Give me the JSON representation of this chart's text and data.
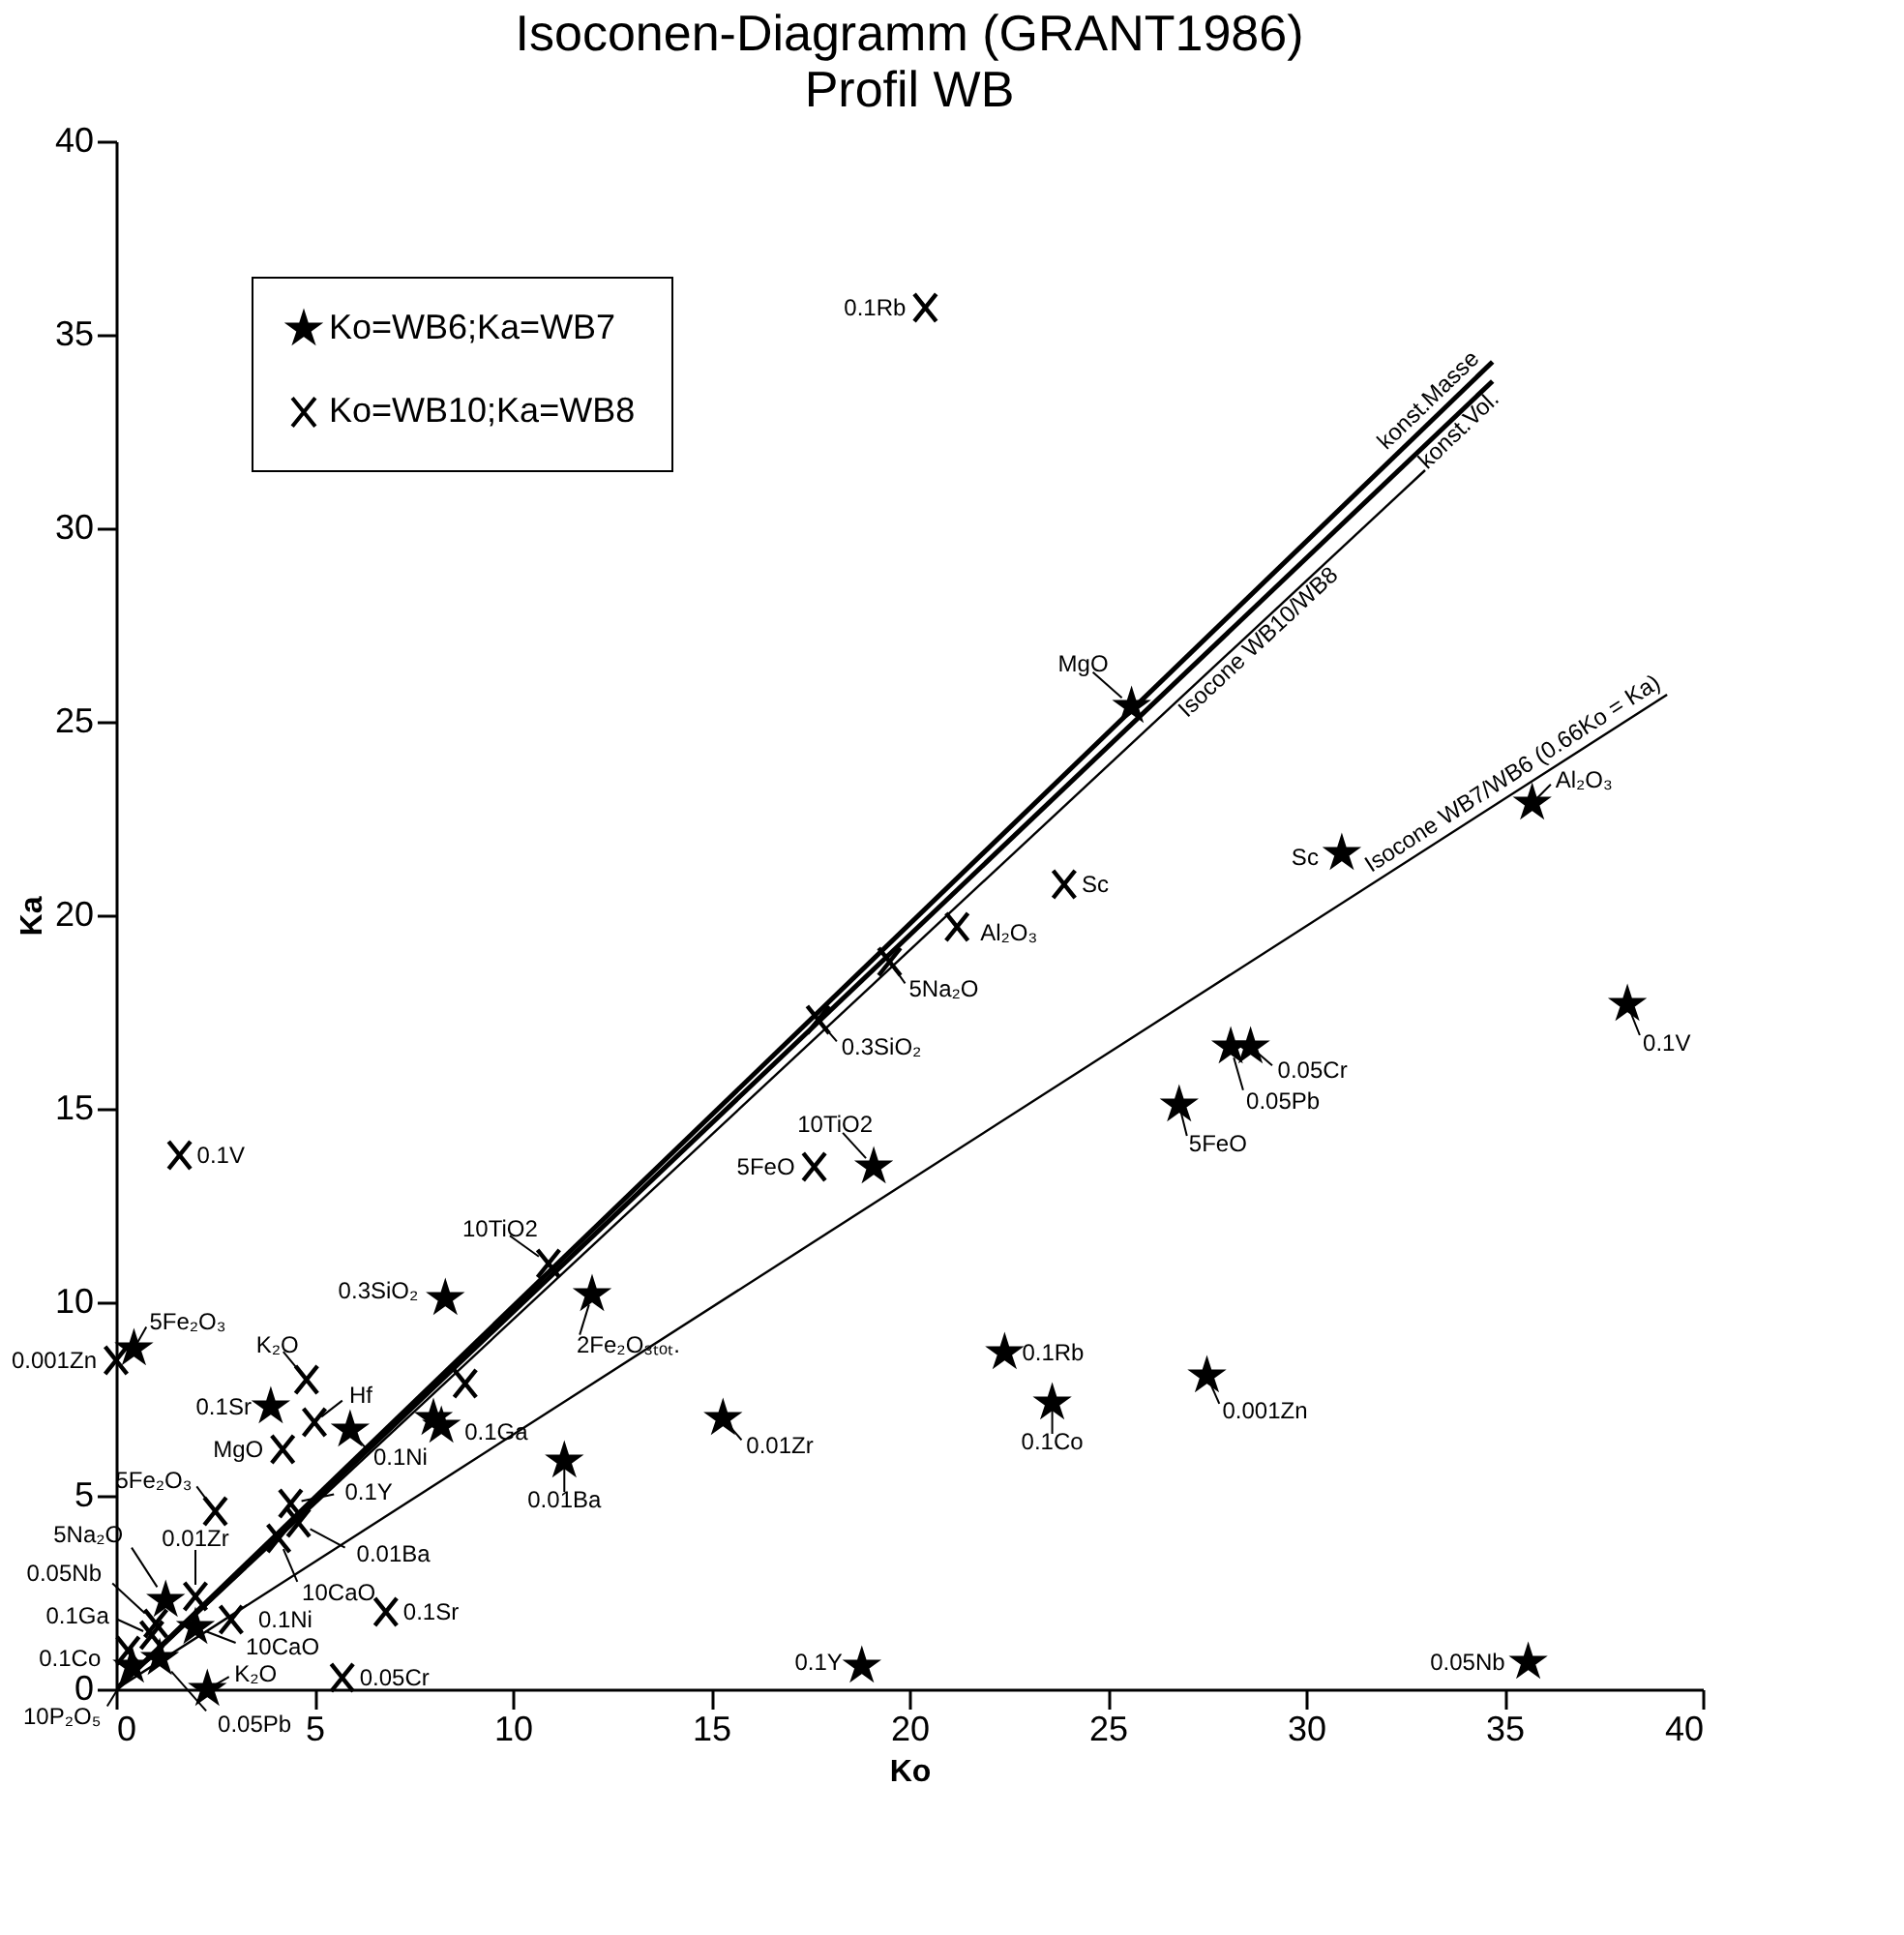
{
  "chart_data": {
    "type": "scatter",
    "title": "Isoconen-Diagramm (GRANT1986)",
    "subtitle": "Profil WB",
    "xlabel": "Ko",
    "ylabel": "Ka",
    "xlim": [
      0,
      40
    ],
    "ylim": [
      0,
      40
    ],
    "xticks": [
      0,
      5,
      10,
      15,
      20,
      25,
      30,
      35,
      40
    ],
    "yticks": [
      0,
      5,
      10,
      15,
      20,
      25,
      30,
      35,
      40
    ],
    "grid": false,
    "legend": "top left",
    "series": [
      {
        "name": "Ko=WB6;Ka=WB7",
        "marker": "star",
        "color": "#000000",
        "x": [
          25.6,
          35.7,
          30.9,
          38.1,
          28.6,
          28.1,
          26.8,
          19.1,
          22.4,
          23.6,
          27.5,
          15.3,
          18.8,
          35.6,
          11.3,
          8.3,
          12.0,
          0.45,
          3.9,
          5.9,
          8.0,
          8.2,
          1.25,
          2.3,
          2.0,
          0.4,
          1.1
        ],
        "values": [
          25.4,
          22.9,
          21.6,
          17.7,
          16.6,
          16.6,
          15.1,
          13.5,
          8.7,
          7.4,
          8.1,
          7.0,
          0.6,
          0.7,
          5.9,
          10.1,
          10.2,
          8.8,
          7.3,
          6.7,
          7.0,
          6.8,
          2.3,
          0.0,
          1.6,
          0.6,
          0.8
        ]
      },
      {
        "name": "Ko=WB10;Ka=WB8",
        "marker": "cross",
        "color": "#000000",
        "x": [
          20.4,
          1.6,
          23.9,
          21.2,
          19.5,
          17.7,
          17.6,
          10.9,
          0.0,
          4.8,
          5.0,
          4.2,
          2.5,
          4.4,
          4.6,
          4.1,
          8.8,
          2.9,
          6.8,
          5.7,
          0.3,
          0.9,
          1.0,
          2.0
        ],
        "values": [
          35.7,
          13.8,
          20.8,
          19.7,
          18.8,
          17.3,
          13.5,
          11.0,
          8.5,
          8.0,
          6.9,
          6.2,
          4.6,
          4.8,
          4.3,
          3.9,
          7.9,
          1.8,
          2.0,
          0.3,
          1.0,
          1.4,
          1.7,
          2.4
        ]
      },
      {
        "name": "konst.Masse",
        "type": "line",
        "color": "#000000",
        "x": [
          0,
          34.7
        ],
        "values": [
          0,
          34.3
        ]
      },
      {
        "name": "konst.Vol.",
        "type": "line",
        "color": "#000000",
        "x": [
          0,
          34.7
        ],
        "values": [
          0,
          33.8
        ]
      },
      {
        "name": "Isocone WB10/WB8",
        "type": "line",
        "color": "#000000",
        "x": [
          0,
          33.0
        ],
        "values": [
          0,
          31.5
        ]
      },
      {
        "name": "Isocone WB7/WB6 (0.66Ko = Ka)",
        "type": "line",
        "color": "#000000",
        "x": [
          0,
          39.1
        ],
        "values": [
          0,
          25.7
        ]
      }
    ],
    "annotations": [
      {
        "text": "MgO",
        "x": 25.6,
        "y": 25.4
      },
      {
        "text": "Al₂O₃",
        "x": 35.7,
        "y": 22.9
      },
      {
        "text": "Sc",
        "x": 30.9,
        "y": 21.6
      },
      {
        "text": "0.1V",
        "x": 38.1,
        "y": 17.7
      },
      {
        "text": "0.05Cr",
        "x": 28.6,
        "y": 16.6
      },
      {
        "text": "0.05Pb",
        "x": 28.1,
        "y": 16.6
      },
      {
        "text": "5FeO",
        "x": 26.8,
        "y": 15.1
      },
      {
        "text": "10TiO2",
        "x": 19.1,
        "y": 13.5
      },
      {
        "text": "0.1Rb",
        "x": 22.4,
        "y": 8.7
      },
      {
        "text": "0.1Co",
        "x": 23.6,
        "y": 7.4
      },
      {
        "text": "0.001Zn",
        "x": 27.5,
        "y": 8.1
      },
      {
        "text": "0.01Zr",
        "x": 15.3,
        "y": 7.0
      },
      {
        "text": "0.1Y",
        "x": 18.8,
        "y": 0.6
      },
      {
        "text": "0.05Nb",
        "x": 35.6,
        "y": 0.7
      },
      {
        "text": "0.01Ba",
        "x": 11.3,
        "y": 5.9
      },
      {
        "text": "0.3SiO₂",
        "x": 8.3,
        "y": 10.1
      },
      {
        "text": "2Fe₂O₃ₜₒₜ.",
        "x": 12.0,
        "y": 10.2
      },
      {
        "text": "5Fe₂O₃",
        "x": 0.45,
        "y": 8.8
      },
      {
        "text": "0.1Sr",
        "x": 3.9,
        "y": 7.3
      },
      {
        "text": "0.1Ni",
        "x": 5.9,
        "y": 6.7
      },
      {
        "text": "0.1Ga",
        "x": 8.2,
        "y": 6.8
      },
      {
        "text": "5Na₂O",
        "x": 1.25,
        "y": 2.3
      },
      {
        "text": "K₂O",
        "x": 2.3,
        "y": 0.0
      },
      {
        "text": "10CaO",
        "x": 2.0,
        "y": 1.6
      },
      {
        "text": "10P₂O₅",
        "x": 0.4,
        "y": 0.6
      },
      {
        "text": "0.05Pb",
        "x": 1.1,
        "y": 0.8
      },
      {
        "text": "0.1Rb",
        "x": 20.4,
        "y": 35.7
      },
      {
        "text": "0.1V",
        "x": 1.6,
        "y": 13.8
      },
      {
        "text": "Sc",
        "x": 23.9,
        "y": 20.8
      },
      {
        "text": "Al₂O₃",
        "x": 21.2,
        "y": 19.7
      },
      {
        "text": "5Na₂O",
        "x": 19.5,
        "y": 18.8
      },
      {
        "text": "0.3SiO₂",
        "x": 17.7,
        "y": 17.3
      },
      {
        "text": "5FeO",
        "x": 17.6,
        "y": 13.5
      },
      {
        "text": "10TiO2",
        "x": 10.9,
        "y": 11.0
      },
      {
        "text": "0.001Zn",
        "x": 0.0,
        "y": 8.5
      },
      {
        "text": "K₂O",
        "x": 4.8,
        "y": 8.0
      },
      {
        "text": "Hf",
        "x": 5.0,
        "y": 6.9
      },
      {
        "text": "MgO",
        "x": 4.2,
        "y": 6.2
      },
      {
        "text": "5Fe₂O₃",
        "x": 2.5,
        "y": 4.6
      },
      {
        "text": "0.1Y",
        "x": 4.4,
        "y": 4.8
      },
      {
        "text": "0.01Ba",
        "x": 4.6,
        "y": 4.3
      },
      {
        "text": "10CaO",
        "x": 4.1,
        "y": 3.9
      },
      {
        "text": "0.1Ni",
        "x": 2.9,
        "y": 1.8
      },
      {
        "text": "0.1Sr",
        "x": 6.8,
        "y": 2.0
      },
      {
        "text": "0.05Cr",
        "x": 5.7,
        "y": 0.3
      },
      {
        "text": "0.1Co",
        "x": 0.3,
        "y": 1.0
      },
      {
        "text": "0.1Ga",
        "x": 0.9,
        "y": 1.4
      },
      {
        "text": "0.05Nb",
        "x": 1.0,
        "y": 1.7
      },
      {
        "text": "0.01Zr",
        "x": 2.0,
        "y": 2.4
      }
    ]
  }
}
